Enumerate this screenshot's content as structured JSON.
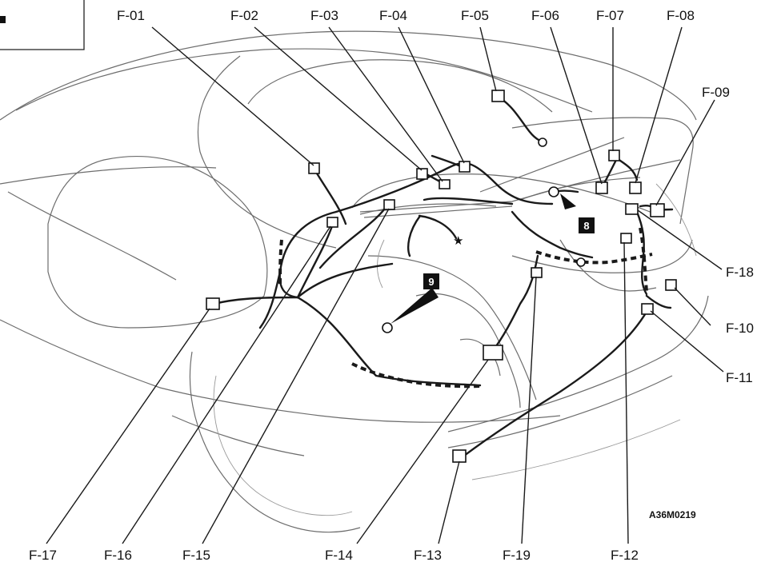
{
  "diagram": {
    "code": "A36M0219",
    "callouts": [
      "8",
      "9"
    ],
    "labels": {
      "F01": "F-01",
      "F02": "F-02",
      "F03": "F-03",
      "F04": "F-04",
      "F05": "F-05",
      "F06": "F-06",
      "F07": "F-07",
      "F08": "F-08",
      "F09": "F-09",
      "F10": "F-10",
      "F11": "F-11",
      "F12": "F-12",
      "F13": "F-13",
      "F14": "F-14",
      "F15": "F-15",
      "F16": "F-16",
      "F17": "F-17",
      "F18": "F-18",
      "F19": "F-19"
    }
  }
}
